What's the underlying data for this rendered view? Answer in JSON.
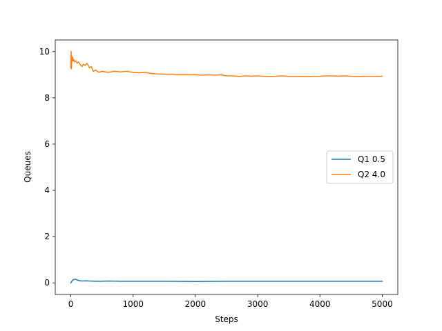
{
  "chart_data": {
    "type": "line",
    "title": "",
    "xlabel": "Steps",
    "ylabel": "Queues",
    "xlim": [
      -250,
      5250
    ],
    "ylim": [
      -0.5,
      10.5
    ],
    "xticks": [
      0,
      1000,
      2000,
      3000,
      4000,
      5000
    ],
    "yticks": [
      0,
      2,
      4,
      6,
      8,
      10
    ],
    "grid": false,
    "legend_position": "center-right",
    "series": [
      {
        "name": "Q1 0.5",
        "color": "#1f77b4",
        "x": [
          0,
          10,
          20,
          30,
          50,
          70,
          90,
          110,
          130,
          150,
          200,
          250,
          300,
          400,
          500,
          600,
          800,
          1000,
          1500,
          2000,
          2500,
          3000,
          3500,
          4000,
          4500,
          5000
        ],
        "y": [
          0.0,
          0.05,
          0.08,
          0.12,
          0.15,
          0.16,
          0.14,
          0.12,
          0.1,
          0.09,
          0.08,
          0.09,
          0.08,
          0.07,
          0.07,
          0.08,
          0.07,
          0.07,
          0.07,
          0.06,
          0.07,
          0.07,
          0.07,
          0.07,
          0.07,
          0.07
        ]
      },
      {
        "name": "Q2 4.0",
        "color": "#ff7f0e",
        "x": [
          0,
          5,
          10,
          15,
          20,
          25,
          30,
          40,
          50,
          60,
          80,
          100,
          120,
          150,
          180,
          200,
          230,
          260,
          300,
          330,
          360,
          400,
          450,
          500,
          600,
          700,
          800,
          900,
          1000,
          1100,
          1200,
          1300,
          1400,
          1500,
          1600,
          1700,
          1800,
          1900,
          2000,
          2100,
          2200,
          2300,
          2400,
          2500,
          2600,
          2700,
          2800,
          2900,
          3000,
          3100,
          3200,
          3300,
          3400,
          3500,
          3600,
          3700,
          3800,
          3900,
          4000,
          4100,
          4200,
          4300,
          4400,
          4500,
          4600,
          4700,
          4800,
          4900,
          5000
        ],
        "y": [
          9.3,
          10.0,
          9.25,
          9.8,
          9.7,
          9.6,
          9.75,
          9.6,
          9.65,
          9.55,
          9.6,
          9.5,
          9.55,
          9.45,
          9.35,
          9.45,
          9.4,
          9.5,
          9.3,
          9.35,
          9.15,
          9.2,
          9.1,
          9.15,
          9.1,
          9.15,
          9.12,
          9.15,
          9.1,
          9.08,
          9.1,
          9.05,
          9.03,
          9.02,
          9.02,
          9.0,
          9.0,
          9.0,
          9.0,
          8.98,
          9.0,
          8.98,
          9.0,
          8.95,
          8.95,
          8.92,
          8.95,
          8.93,
          8.95,
          8.93,
          8.92,
          8.93,
          8.95,
          8.92,
          8.92,
          8.93,
          8.92,
          8.93,
          8.93,
          8.95,
          8.95,
          8.93,
          8.95,
          8.93,
          8.92,
          8.93,
          8.93,
          8.93,
          8.93
        ]
      }
    ]
  }
}
